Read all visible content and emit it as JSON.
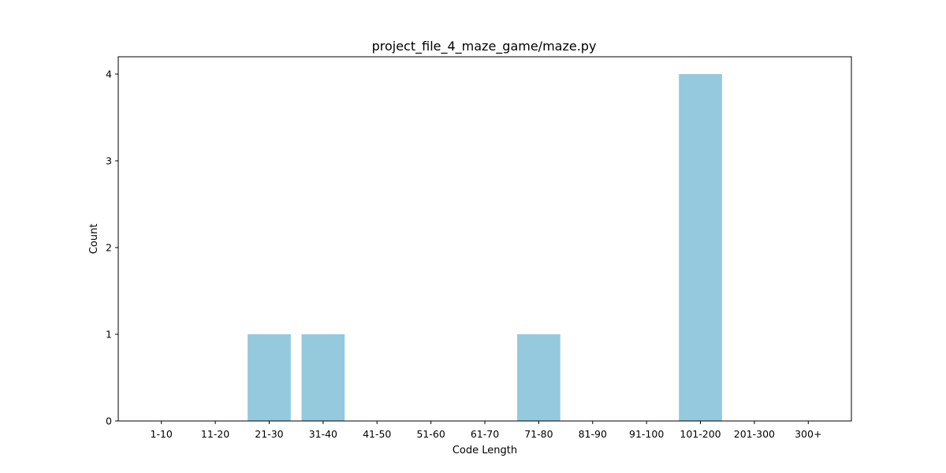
{
  "chart_data": {
    "type": "bar",
    "title": "project_file_4_maze_game/maze.py",
    "xlabel": "Code Length",
    "ylabel": "Count",
    "categories": [
      "1-10",
      "11-20",
      "21-30",
      "31-40",
      "41-50",
      "51-60",
      "61-70",
      "71-80",
      "81-90",
      "91-100",
      "101-200",
      "201-300",
      "300+"
    ],
    "values": [
      0,
      0,
      1,
      1,
      0,
      0,
      0,
      1,
      0,
      0,
      4,
      0,
      0
    ],
    "ylim": [
      0,
      4.2
    ],
    "yticks": [
      0,
      1,
      2,
      3,
      4
    ],
    "bar_color": "#95c9dd",
    "grid": false,
    "legend": "none"
  }
}
